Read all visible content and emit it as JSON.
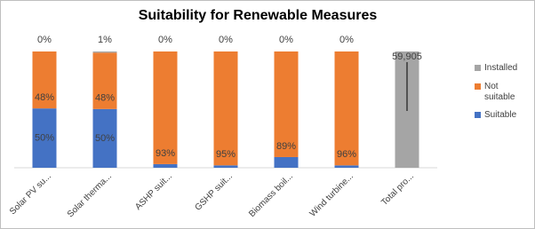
{
  "chart_data": {
    "type": "bar",
    "stacking": "percent",
    "title": "Suitability for Renewable Measures",
    "categories": [
      "Solar PV su...",
      "Solar therma...",
      "ASHP suit...",
      "GSHP suit...",
      "Biomass boil...",
      "Wind turbine...",
      "Total pro..."
    ],
    "series": [
      {
        "name": "Suitable",
        "color": "#4472c4",
        "values": [
          50,
          50,
          3,
          2,
          9,
          2,
          null
        ],
        "value_labels": [
          "50%",
          "50%",
          null,
          null,
          null,
          null,
          null
        ]
      },
      {
        "name": "Not suitable",
        "color": "#ed7d31",
        "values": [
          48,
          48,
          93,
          95,
          89,
          96,
          null
        ],
        "value_labels": [
          "48%",
          "48%",
          "93%",
          "95%",
          "89%",
          "96%",
          null
        ]
      },
      {
        "name": "Installed",
        "color": "#a5a5a5",
        "values": [
          0,
          1,
          0,
          0,
          0,
          0,
          59905
        ],
        "value_labels": [
          "0%",
          "1%",
          "0%",
          "0%",
          "0%",
          "0%",
          "59,905"
        ]
      }
    ],
    "legend": "right"
  }
}
